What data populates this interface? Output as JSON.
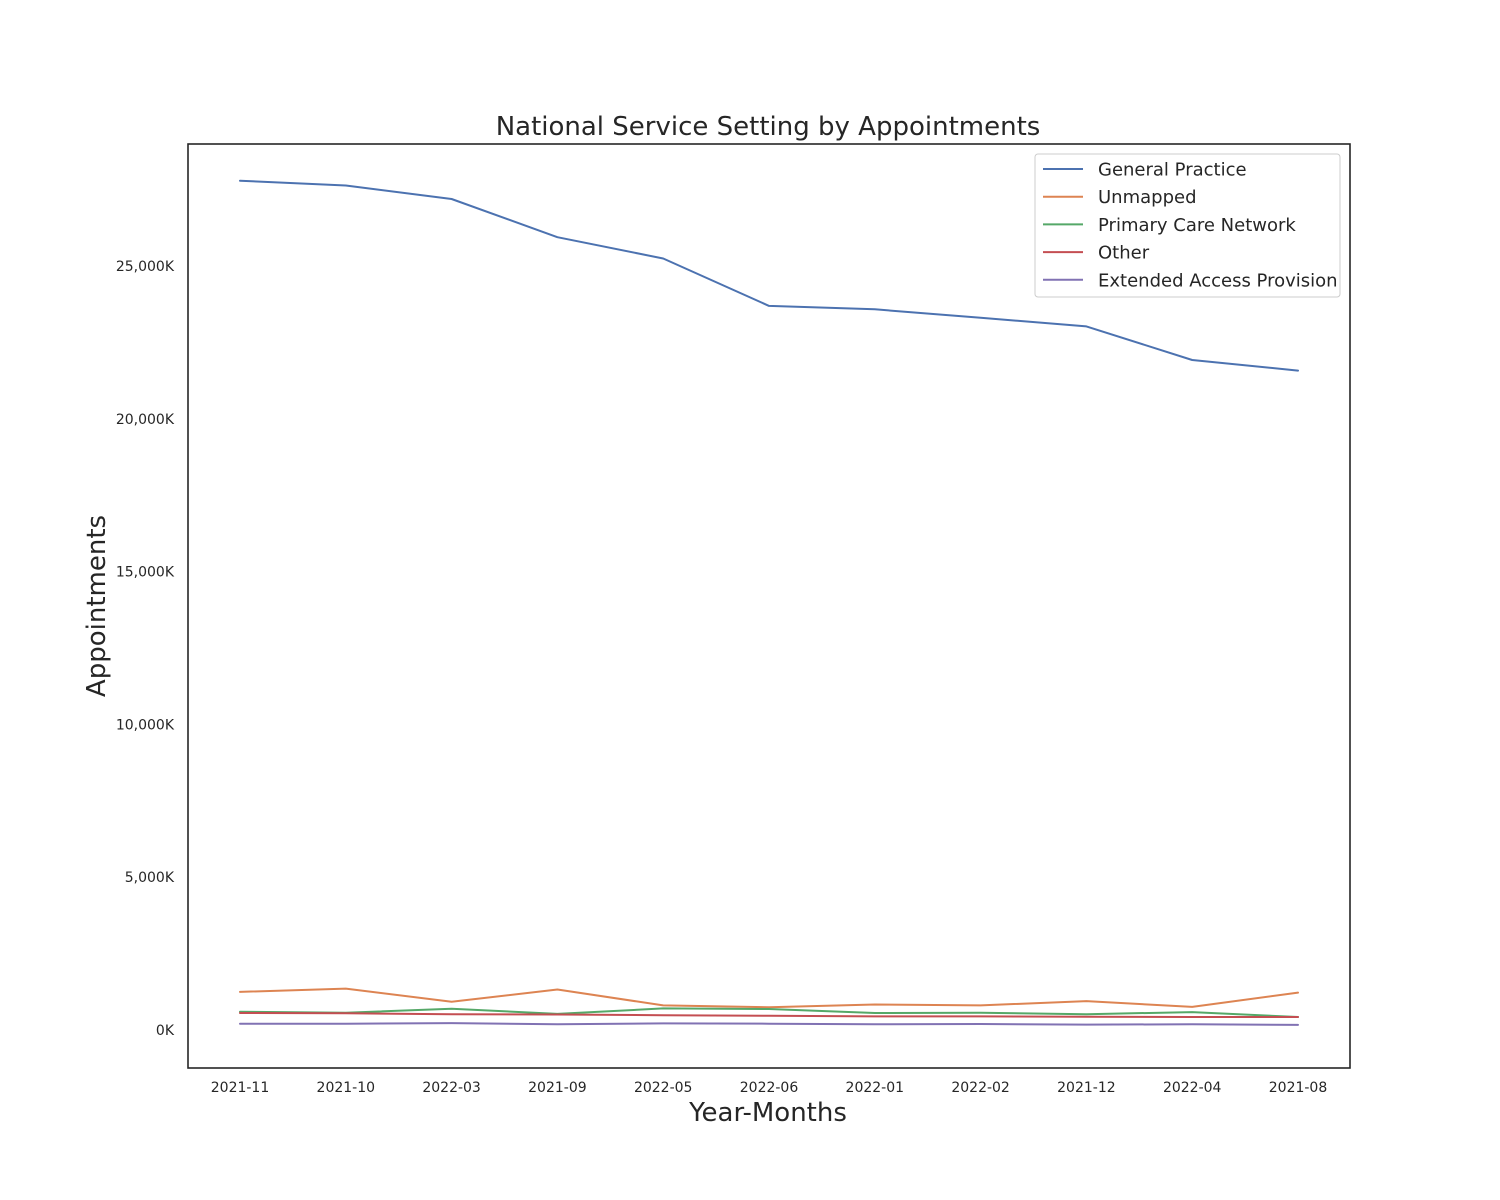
{
  "chart_data": {
    "type": "line",
    "title": "National Service Setting by Appointments",
    "xlabel": "Year-Months",
    "ylabel": "Appointments",
    "categories": [
      "2021-11",
      "2021-10",
      "2022-03",
      "2021-09",
      "2022-05",
      "2022-06",
      "2022-01",
      "2022-02",
      "2021-12",
      "2022-04",
      "2021-08"
    ],
    "ylim": [
      -1250,
      29000
    ],
    "y_ticks": [
      0,
      5000,
      10000,
      15000,
      20000,
      25000
    ],
    "y_tick_labels": [
      "0K",
      "5,000K",
      "10,000K",
      "15,000K",
      "20,000K",
      "25,000K"
    ],
    "y_unit": "thousands of appointments",
    "grid": false,
    "legend_position": "top-right",
    "series": [
      {
        "name": "General Practice",
        "color": "#4c72b0",
        "values": [
          27800,
          27640,
          27200,
          25950,
          25250,
          23700,
          23590,
          23310,
          23030,
          21930,
          21580
        ]
      },
      {
        "name": "Unmapped",
        "color": "#dd8452",
        "values": [
          1240,
          1350,
          920,
          1320,
          800,
          740,
          830,
          800,
          940,
          750,
          1220
        ]
      },
      {
        "name": "Primary Care Network",
        "color": "#55a868",
        "values": [
          590,
          560,
          690,
          520,
          700,
          680,
          550,
          560,
          510,
          580,
          420
        ]
      },
      {
        "name": "Other",
        "color": "#c44e52",
        "values": [
          550,
          540,
          510,
          500,
          480,
          460,
          440,
          440,
          430,
          420,
          420
        ]
      },
      {
        "name": "Extended Access Provision",
        "color": "#8172b3",
        "values": [
          200,
          200,
          220,
          180,
          210,
          200,
          180,
          190,
          170,
          180,
          160
        ]
      }
    ]
  }
}
